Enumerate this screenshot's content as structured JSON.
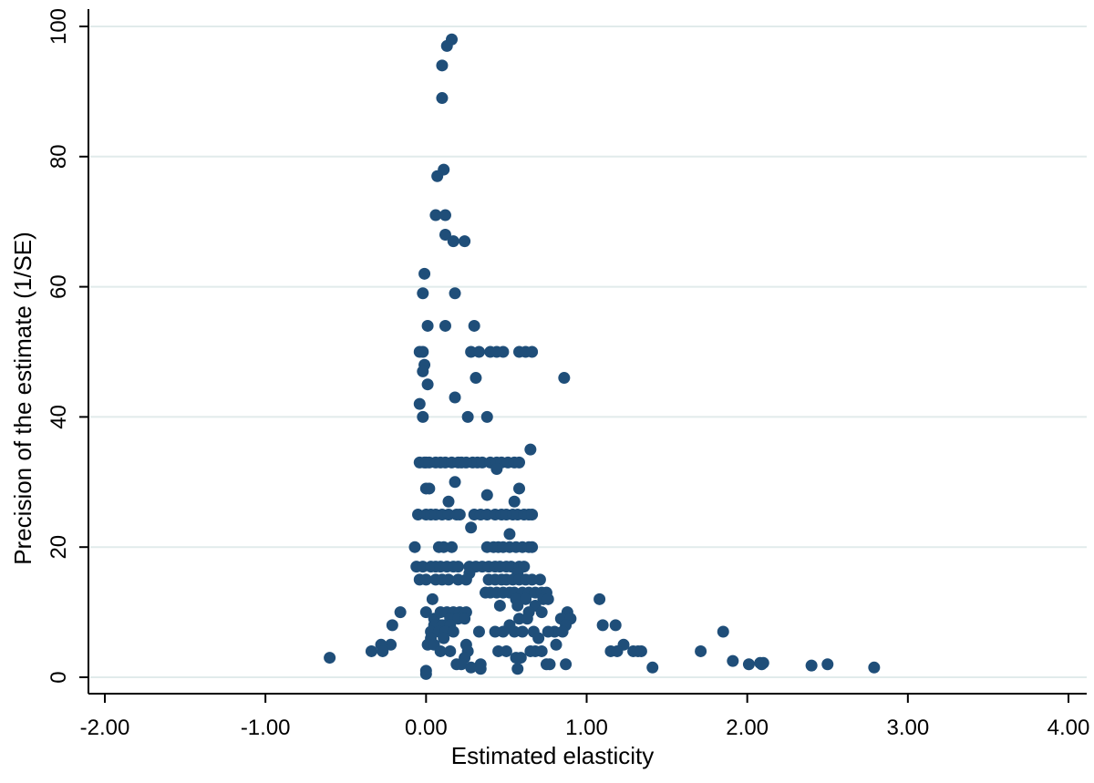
{
  "chart_data": {
    "type": "scatter",
    "title": "",
    "xlabel": "Estimated elasticity",
    "ylabel": "Precision of the estimate (1/SE)",
    "xlim": [
      -2.0,
      4.0
    ],
    "ylim": [
      0,
      100
    ],
    "x_ticks": [
      -2,
      -1,
      0,
      1,
      2,
      3,
      4
    ],
    "x_tick_labels": [
      "-2.00",
      "-1.00",
      "0.00",
      "1.00",
      "2.00",
      "3.00",
      "4.00"
    ],
    "y_ticks": [
      0,
      20,
      40,
      60,
      80,
      100
    ],
    "y_tick_labels": [
      "0",
      "20",
      "40",
      "60",
      "80",
      "100"
    ],
    "grid": "horizontal",
    "legend": "none",
    "marker_color": "#1f4e79",
    "grid_color": "#e1ebeb",
    "points": [
      [
        0.16,
        98
      ],
      [
        0.13,
        97
      ],
      [
        0.1,
        94
      ],
      [
        0.1,
        89
      ],
      [
        0.11,
        78
      ],
      [
        0.07,
        77
      ],
      [
        0.06,
        71
      ],
      [
        0.12,
        71
      ],
      [
        0.12,
        68
      ],
      [
        0.17,
        67
      ],
      [
        0.24,
        67
      ],
      [
        -0.01,
        62
      ],
      [
        -0.02,
        59
      ],
      [
        0.18,
        59
      ],
      [
        0.01,
        54
      ],
      [
        0.12,
        54
      ],
      [
        0.3,
        54
      ],
      [
        -0.02,
        50
      ],
      [
        -0.04,
        50
      ],
      [
        0.28,
        50
      ],
      [
        0.33,
        50
      ],
      [
        0.4,
        50
      ],
      [
        0.44,
        50
      ],
      [
        0.48,
        50
      ],
      [
        0.58,
        50
      ],
      [
        0.62,
        50
      ],
      [
        0.66,
        50
      ],
      [
        -0.01,
        48
      ],
      [
        -0.02,
        47
      ],
      [
        0.01,
        45
      ],
      [
        0.86,
        46
      ],
      [
        0.31,
        46
      ],
      [
        0.18,
        43
      ],
      [
        -0.04,
        42
      ],
      [
        0.26,
        40
      ],
      [
        -0.02,
        40
      ],
      [
        0.38,
        40
      ],
      [
        0.65,
        35
      ],
      [
        -0.04,
        33
      ],
      [
        -0.01,
        33
      ],
      [
        0.0,
        33
      ],
      [
        0.02,
        33
      ],
      [
        0.06,
        33
      ],
      [
        0.09,
        33
      ],
      [
        0.12,
        33
      ],
      [
        0.16,
        33
      ],
      [
        0.2,
        33
      ],
      [
        0.22,
        33
      ],
      [
        0.25,
        33
      ],
      [
        0.29,
        33
      ],
      [
        0.32,
        33
      ],
      [
        0.35,
        33
      ],
      [
        0.4,
        33
      ],
      [
        0.44,
        33
      ],
      [
        0.47,
        33
      ],
      [
        0.51,
        33
      ],
      [
        0.55,
        33
      ],
      [
        0.58,
        33
      ],
      [
        0.18,
        30
      ],
      [
        0.44,
        32
      ],
      [
        0.0,
        29
      ],
      [
        0.02,
        29
      ],
      [
        0.58,
        29
      ],
      [
        0.38,
        28
      ],
      [
        0.14,
        27
      ],
      [
        0.55,
        27
      ],
      [
        -0.05,
        25
      ],
      [
        0.0,
        25
      ],
      [
        0.03,
        25
      ],
      [
        0.06,
        25
      ],
      [
        0.1,
        25
      ],
      [
        0.14,
        25
      ],
      [
        0.19,
        25
      ],
      [
        0.21,
        25
      ],
      [
        0.3,
        25
      ],
      [
        0.34,
        25
      ],
      [
        0.38,
        25
      ],
      [
        0.43,
        25
      ],
      [
        0.47,
        25
      ],
      [
        0.5,
        25
      ],
      [
        0.54,
        25
      ],
      [
        0.57,
        25
      ],
      [
        0.61,
        25
      ],
      [
        0.64,
        25
      ],
      [
        0.66,
        25
      ],
      [
        0.28,
        23
      ],
      [
        0.52,
        22
      ],
      [
        -0.07,
        20
      ],
      [
        0.08,
        20
      ],
      [
        0.11,
        20
      ],
      [
        0.16,
        20
      ],
      [
        0.38,
        20
      ],
      [
        0.42,
        20
      ],
      [
        0.45,
        20
      ],
      [
        0.48,
        20
      ],
      [
        0.52,
        20
      ],
      [
        0.56,
        20
      ],
      [
        0.6,
        20
      ],
      [
        0.64,
        20
      ],
      [
        0.66,
        20
      ],
      [
        -0.06,
        17
      ],
      [
        -0.02,
        17
      ],
      [
        0.03,
        17
      ],
      [
        0.06,
        17
      ],
      [
        0.09,
        17
      ],
      [
        0.13,
        17
      ],
      [
        0.17,
        17
      ],
      [
        0.2,
        17
      ],
      [
        0.27,
        17
      ],
      [
        0.31,
        17
      ],
      [
        0.35,
        17
      ],
      [
        0.39,
        17
      ],
      [
        0.43,
        17
      ],
      [
        0.46,
        17
      ],
      [
        0.5,
        17
      ],
      [
        0.53,
        17
      ],
      [
        0.58,
        17
      ],
      [
        0.61,
        17
      ],
      [
        0.27,
        16
      ],
      [
        0.57,
        16
      ],
      [
        -0.04,
        15
      ],
      [
        0.0,
        15
      ],
      [
        0.06,
        15
      ],
      [
        0.1,
        15
      ],
      [
        0.14,
        15
      ],
      [
        0.2,
        15
      ],
      [
        0.25,
        15
      ],
      [
        0.39,
        15
      ],
      [
        0.43,
        15
      ],
      [
        0.47,
        15
      ],
      [
        0.5,
        15
      ],
      [
        0.54,
        15
      ],
      [
        0.58,
        15
      ],
      [
        0.62,
        15
      ],
      [
        0.66,
        15
      ],
      [
        0.71,
        15
      ],
      [
        0.37,
        13
      ],
      [
        0.4,
        13
      ],
      [
        0.44,
        13
      ],
      [
        0.48,
        13
      ],
      [
        0.52,
        13
      ],
      [
        0.55,
        13
      ],
      [
        0.6,
        13
      ],
      [
        0.64,
        13
      ],
      [
        0.68,
        13
      ],
      [
        0.72,
        13
      ],
      [
        0.75,
        13
      ],
      [
        0.56,
        12
      ],
      [
        0.62,
        12
      ],
      [
        0.73,
        12
      ],
      [
        0.76,
        12
      ],
      [
        0.04,
        12
      ],
      [
        1.08,
        12
      ],
      [
        0.57,
        11
      ],
      [
        0.68,
        11
      ],
      [
        0.46,
        11
      ],
      [
        -0.16,
        10
      ],
      [
        0.0,
        10
      ],
      [
        0.05,
        9
      ],
      [
        0.09,
        10
      ],
      [
        0.13,
        10
      ],
      [
        0.17,
        10
      ],
      [
        0.21,
        10
      ],
      [
        0.25,
        10
      ],
      [
        0.15,
        9
      ],
      [
        0.2,
        9
      ],
      [
        0.24,
        9
      ],
      [
        0.64,
        10
      ],
      [
        0.72,
        10
      ],
      [
        0.88,
        10
      ],
      [
        0.58,
        9
      ],
      [
        0.63,
        9
      ],
      [
        0.84,
        9
      ],
      [
        0.9,
        9
      ],
      [
        -0.21,
        8
      ],
      [
        0.05,
        8
      ],
      [
        0.1,
        8
      ],
      [
        0.15,
        8
      ],
      [
        0.52,
        8
      ],
      [
        0.87,
        8
      ],
      [
        1.1,
        8
      ],
      [
        0.03,
        7
      ],
      [
        0.08,
        7
      ],
      [
        0.12,
        7
      ],
      [
        0.17,
        7
      ],
      [
        0.33,
        7
      ],
      [
        0.55,
        7
      ],
      [
        0.6,
        7
      ],
      [
        0.67,
        7
      ],
      [
        0.8,
        7
      ],
      [
        0.85,
        7
      ],
      [
        1.18,
        8
      ],
      [
        0.43,
        7
      ],
      [
        0.48,
        7
      ],
      [
        0.7,
        6
      ],
      [
        0.76,
        7
      ],
      [
        0.03,
        6
      ],
      [
        0.11,
        6
      ],
      [
        1.85,
        7
      ],
      [
        0.25,
        5
      ],
      [
        1.23,
        5
      ],
      [
        -0.22,
        5
      ],
      [
        -0.28,
        5
      ],
      [
        0.01,
        5
      ],
      [
        0.05,
        5
      ],
      [
        0.09,
        4
      ],
      [
        0.15,
        4
      ],
      [
        0.26,
        4
      ],
      [
        0.45,
        4
      ],
      [
        0.5,
        4
      ],
      [
        0.65,
        4
      ],
      [
        0.68,
        4
      ],
      [
        0.72,
        4
      ],
      [
        0.81,
        5
      ],
      [
        1.15,
        4
      ],
      [
        1.19,
        4
      ],
      [
        1.29,
        4
      ],
      [
        1.32,
        4
      ],
      [
        1.34,
        4
      ],
      [
        1.71,
        4
      ],
      [
        -0.34,
        4
      ],
      [
        -0.27,
        4
      ],
      [
        0.24,
        3
      ],
      [
        0.56,
        3
      ],
      [
        0.59,
        3
      ],
      [
        -0.6,
        3
      ],
      [
        0.19,
        2
      ],
      [
        0.22,
        2
      ],
      [
        0.34,
        2
      ],
      [
        0.75,
        2
      ],
      [
        0.77,
        2
      ],
      [
        0.87,
        2
      ],
      [
        1.91,
        2.5
      ],
      [
        2.01,
        2
      ],
      [
        2.08,
        2.2
      ],
      [
        2.1,
        2.2
      ],
      [
        2.09,
        2
      ],
      [
        0.28,
        1.5
      ],
      [
        0.34,
        1.3
      ],
      [
        0.57,
        1.3
      ],
      [
        0.0,
        1
      ],
      [
        0.0,
        0.5
      ],
      [
        1.41,
        1.5
      ],
      [
        2.4,
        1.8
      ],
      [
        2.5,
        2
      ],
      [
        2.79,
        1.5
      ]
    ]
  }
}
